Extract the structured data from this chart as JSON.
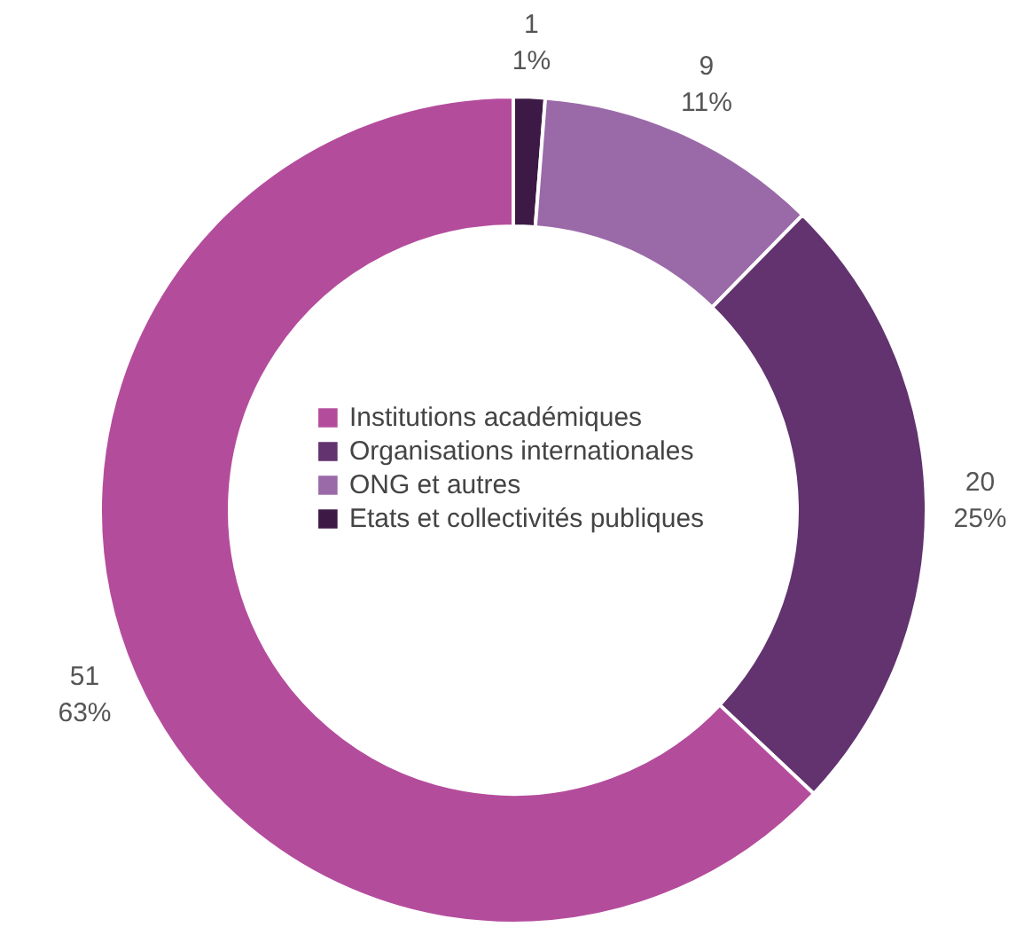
{
  "chart_data": {
    "type": "donut",
    "categories": [
      "Etats et collectivités publiques",
      "ONG et autres",
      "Organisations internationales",
      "Institutions académiques"
    ],
    "values": [
      1,
      9,
      20,
      51
    ],
    "colors": [
      "#3d1a45",
      "#9a6aa8",
      "#62336f",
      "#b44c9c"
    ],
    "value_labels": [
      "1\n1%",
      "9\n11%",
      "20\n25%",
      "51\n63%"
    ],
    "legend": "center"
  }
}
